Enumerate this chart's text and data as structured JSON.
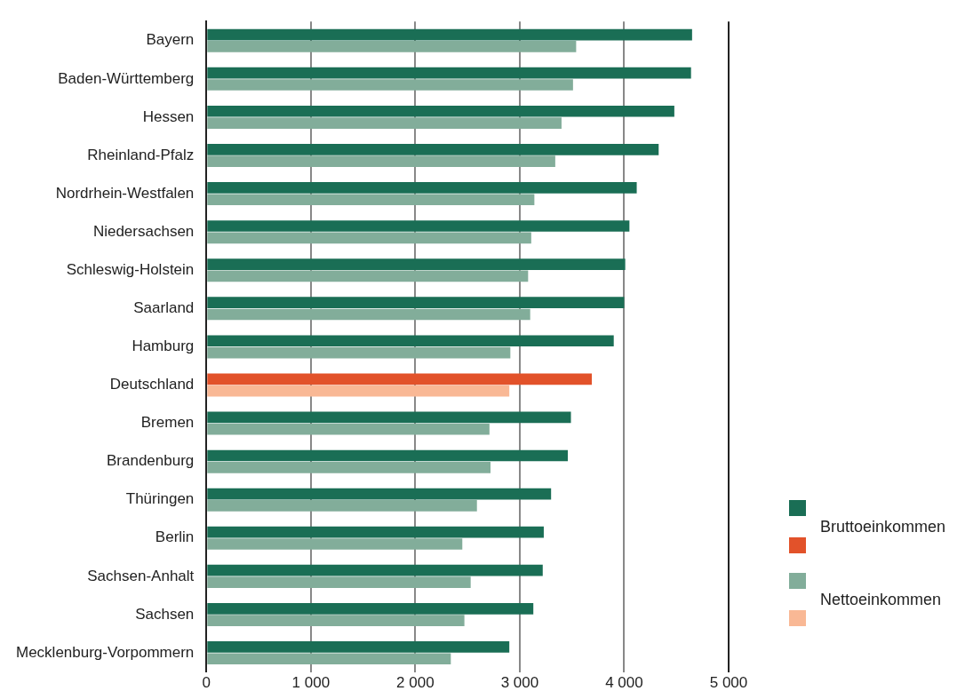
{
  "chart_data": {
    "type": "bar",
    "orientation": "horizontal",
    "categories": [
      "Bayern",
      "Baden-Württemberg",
      "Hessen",
      "Rheinland-Pfalz",
      "Nordrhein-Westfalen",
      "Niedersachsen",
      "Schleswig-Holstein",
      "Saarland",
      "Hamburg",
      "Deutschland",
      "Bremen",
      "Brandenburg",
      "Thüringen",
      "Berlin",
      "Sachsen-Anhalt",
      "Sachsen",
      "Mecklenburg-Vorpommern"
    ],
    "series": [
      {
        "name": "Bruttoeinkommen",
        "color": "#1a6e55",
        "colors": [
          "#1a6e55",
          "#1a6e55",
          "#1a6e55",
          "#1a6e55",
          "#1a6e55",
          "#1a6e55",
          "#1a6e55",
          "#1a6e55",
          "#1a6e55",
          "#e2522a",
          "#1a6e55",
          "#1a6e55",
          "#1a6e55",
          "#1a6e55",
          "#1a6e55",
          "#1a6e55",
          "#1a6e55"
        ],
        "values": [
          4650,
          4640,
          4480,
          4330,
          4120,
          4050,
          4010,
          4000,
          3900,
          3690,
          3490,
          3460,
          3300,
          3230,
          3220,
          3130,
          2900
        ]
      },
      {
        "name": "Nettoeinkommen",
        "color": "#82ad9a",
        "colors": [
          "#82ad9a",
          "#82ad9a",
          "#82ad9a",
          "#82ad9a",
          "#82ad9a",
          "#82ad9a",
          "#82ad9a",
          "#82ad9a",
          "#82ad9a",
          "#f9b895",
          "#82ad9a",
          "#82ad9a",
          "#82ad9a",
          "#82ad9a",
          "#82ad9a",
          "#82ad9a",
          "#82ad9a"
        ],
        "values": [
          3540,
          3510,
          3400,
          3340,
          3140,
          3110,
          3080,
          3100,
          2910,
          2900,
          2710,
          2720,
          2590,
          2450,
          2530,
          2470,
          2340
        ]
      }
    ],
    "xlim": [
      0,
      5000
    ],
    "xticks": [
      0,
      {
        "value": 1000,
        "label": "1 000"
      },
      {
        "value": 2000,
        "label": "2 000"
      },
      {
        "value": 3000,
        "label": "3 000"
      },
      {
        "value": 4000,
        "label": "4 000"
      },
      {
        "value": 5000,
        "label": "5 000"
      }
    ],
    "grid": "x",
    "legend": "bottom right"
  }
}
